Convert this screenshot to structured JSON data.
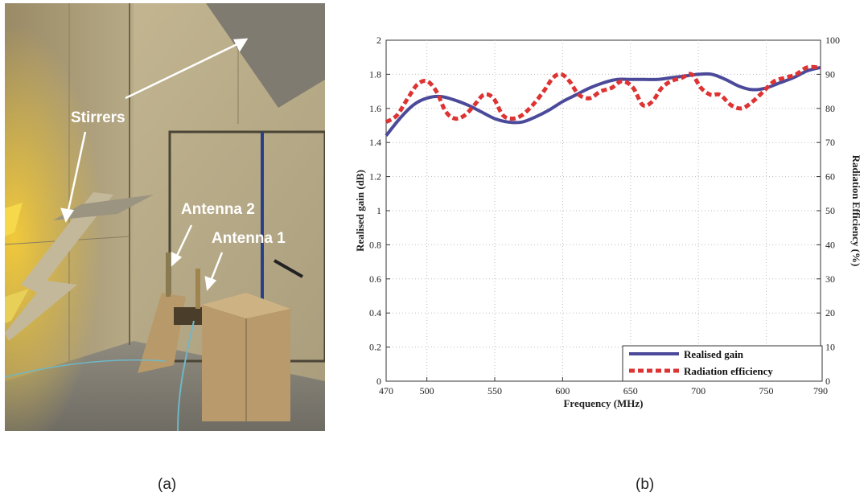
{
  "photo": {
    "labels": {
      "stirrers": "Stirrers",
      "antenna2": "Antenna 2",
      "antenna1": "Antenna 1"
    }
  },
  "captions": {
    "a": "(a)",
    "b": "(b)"
  },
  "chart_data": {
    "type": "line",
    "xlabel": "Frequency (MHz)",
    "ylabel": "Realised gain (dB)",
    "y2label": "Radiation Efficiency (%)",
    "xlim": [
      470,
      790
    ],
    "ylim": [
      0,
      2
    ],
    "y2lim": [
      0,
      100
    ],
    "xticks": [
      470,
      500,
      550,
      600,
      650,
      700,
      750,
      790
    ],
    "yticks": [
      0,
      0.2,
      0.4,
      0.6,
      0.8,
      1,
      1.2,
      1.4,
      1.6,
      1.8,
      2
    ],
    "y2ticks": [
      0,
      10,
      20,
      30,
      40,
      50,
      60,
      70,
      80,
      90,
      100
    ],
    "grid": true,
    "legend_position": "bottom-right",
    "series": [
      {
        "name": "Realised gain",
        "axis": "left",
        "color": "#4b4a9a",
        "style": "solid",
        "x": [
          470,
          480,
          490,
          500,
          510,
          520,
          530,
          540,
          550,
          560,
          570,
          580,
          590,
          600,
          610,
          620,
          630,
          640,
          650,
          660,
          670,
          680,
          690,
          700,
          710,
          720,
          730,
          740,
          750,
          760,
          770,
          780,
          790
        ],
        "y": [
          1.44,
          1.54,
          1.62,
          1.66,
          1.67,
          1.65,
          1.62,
          1.58,
          1.54,
          1.52,
          1.52,
          1.55,
          1.59,
          1.64,
          1.68,
          1.72,
          1.75,
          1.77,
          1.77,
          1.77,
          1.77,
          1.78,
          1.79,
          1.8,
          1.8,
          1.77,
          1.73,
          1.71,
          1.72,
          1.75,
          1.78,
          1.82,
          1.84
        ]
      },
      {
        "name": "Radiation efficiency",
        "axis": "right",
        "color": "#dd3333",
        "style": "dashed",
        "x": [
          470,
          478,
          486,
          493,
          500,
          507,
          514,
          521,
          528,
          535,
          542,
          549,
          556,
          563,
          570,
          578,
          586,
          593,
          599,
          605,
          612,
          620,
          628,
          636,
          644,
          652,
          659,
          666,
          673,
          680,
          688,
          695,
          702,
          709,
          716,
          724,
          732,
          740,
          748,
          756,
          764,
          772,
          780,
          790
        ],
        "y": [
          76,
          78,
          83,
          87,
          88,
          85,
          79,
          77,
          78,
          81,
          84,
          83,
          78,
          77,
          78,
          81,
          85,
          89,
          90,
          88,
          84,
          83,
          85,
          86,
          88,
          86,
          81,
          82,
          86,
          88,
          89,
          90,
          86,
          84,
          84,
          81,
          80,
          82,
          85,
          88,
          89,
          90,
          92,
          92
        ]
      }
    ]
  }
}
